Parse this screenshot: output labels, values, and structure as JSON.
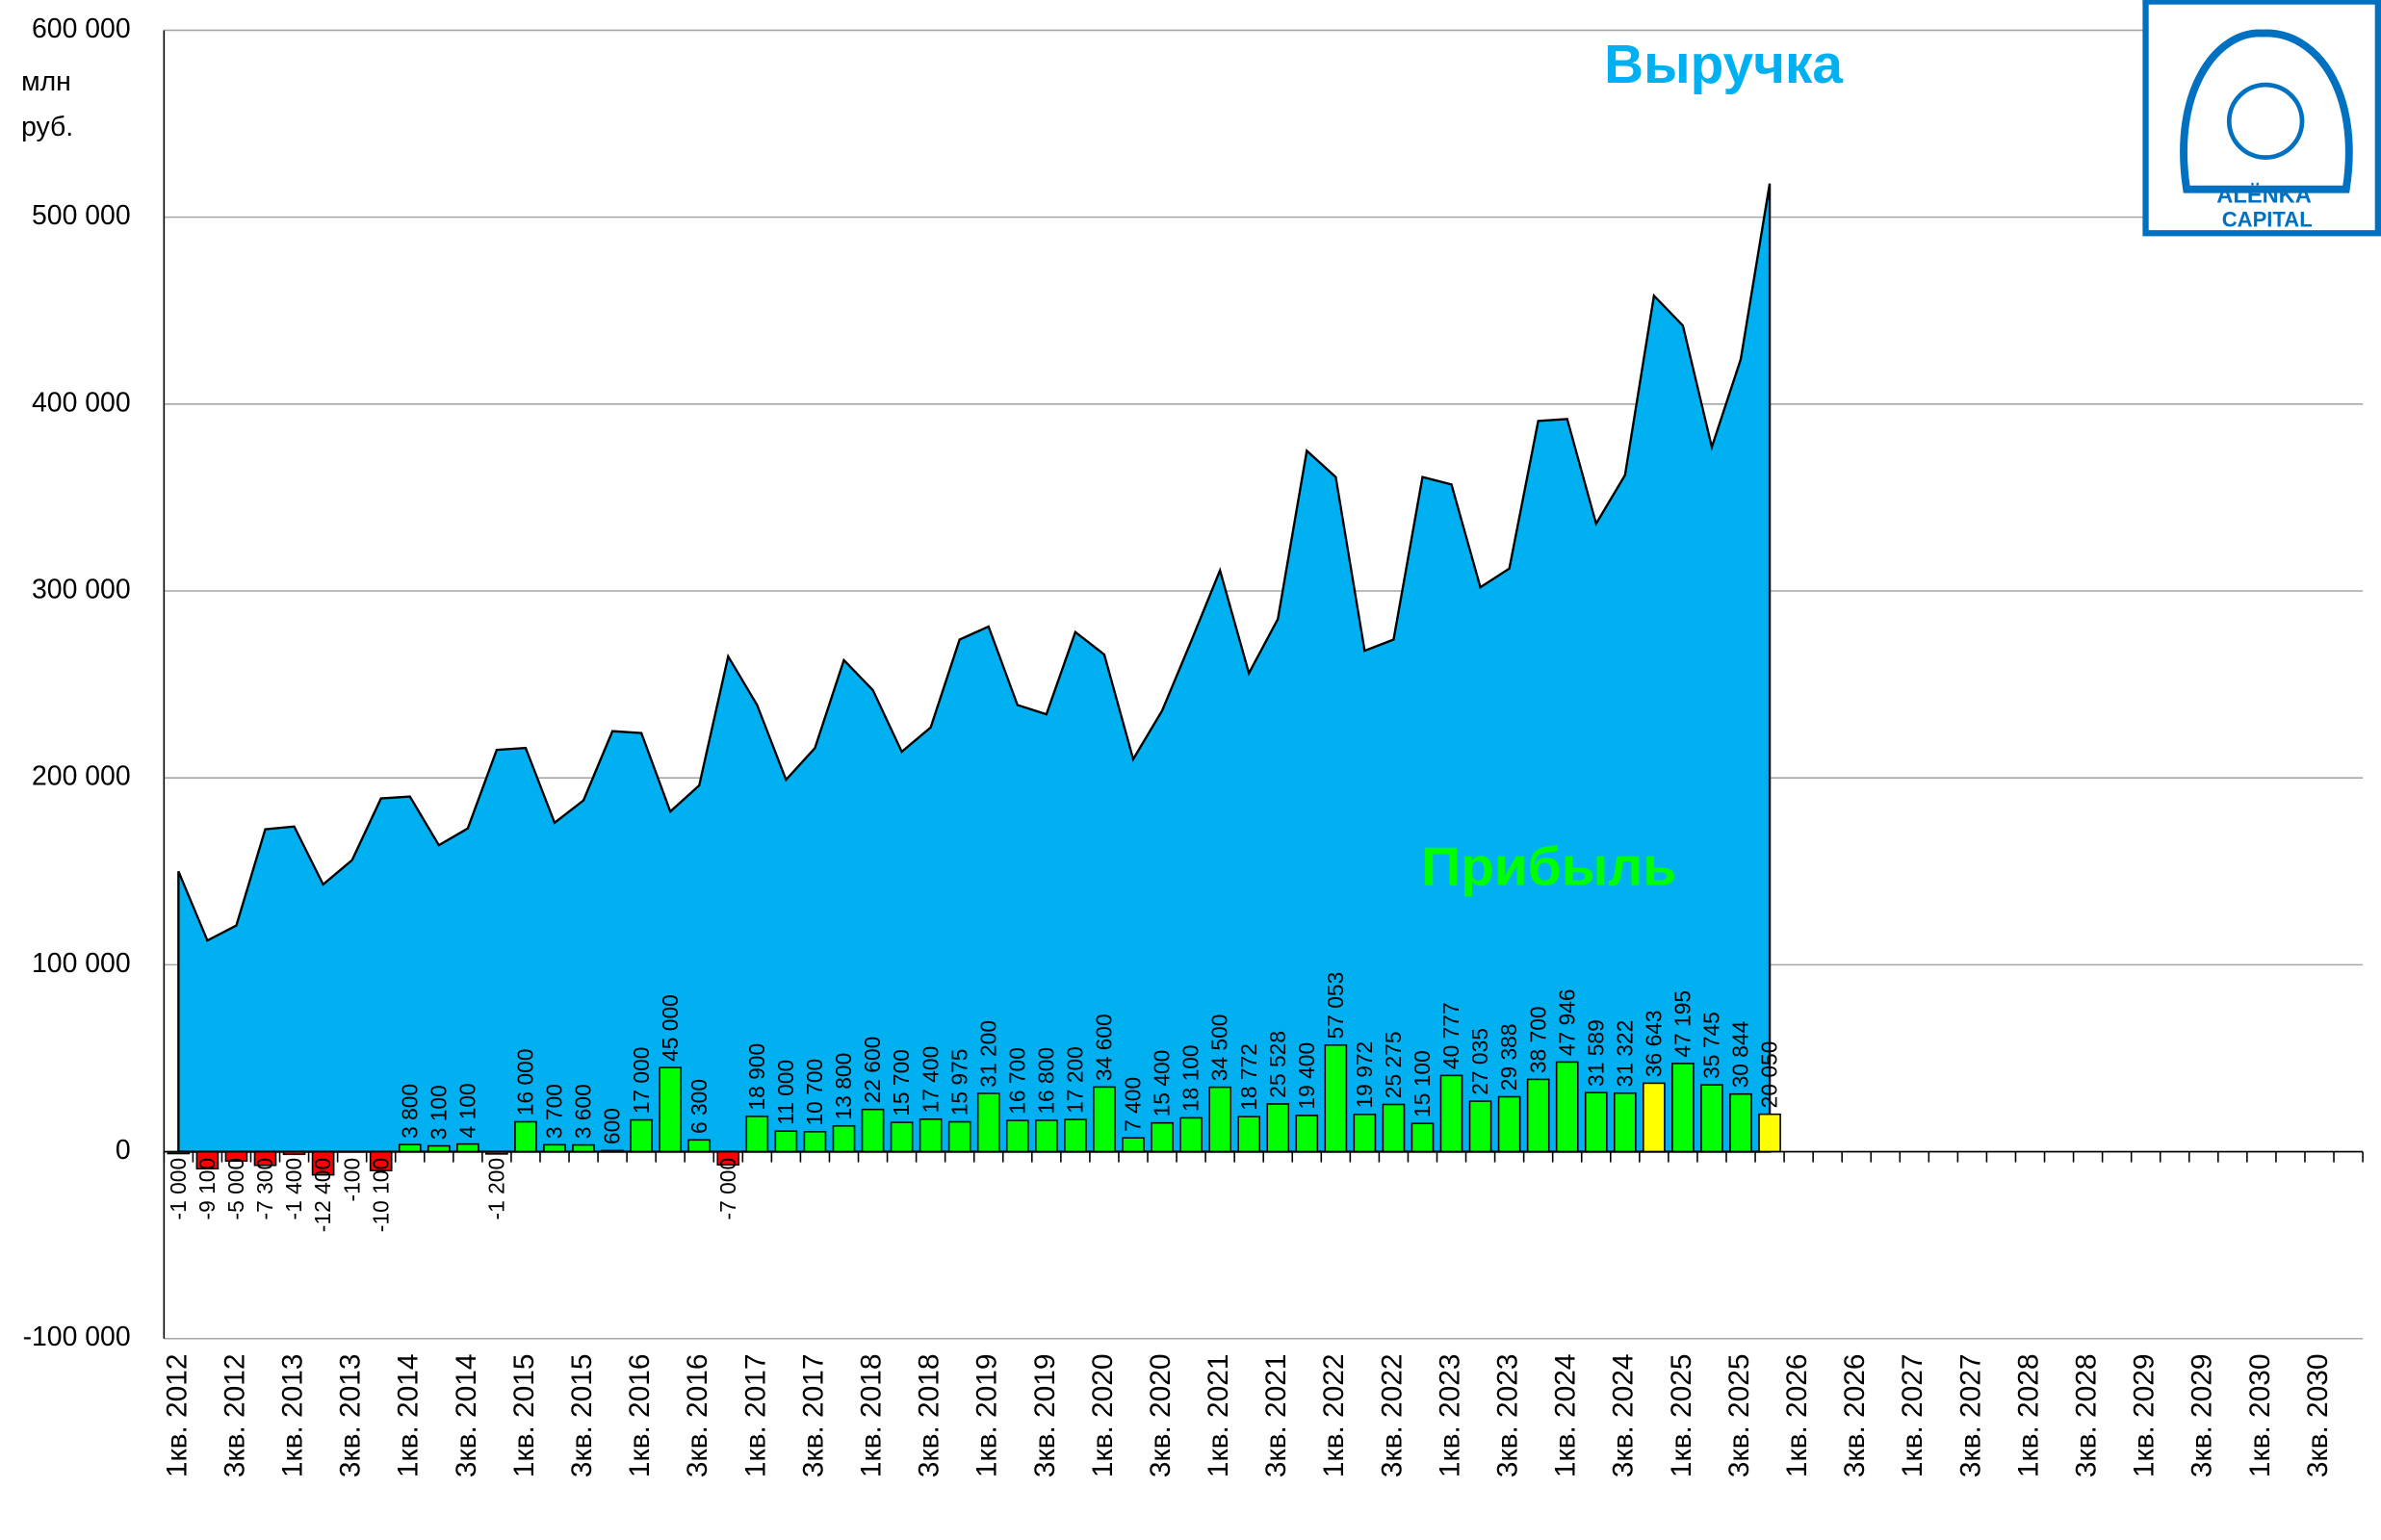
{
  "chart_data": {
    "type": "combo",
    "unit": [
      "млн",
      "руб."
    ],
    "logo": [
      "ALËNKA",
      "CAPITAL"
    ],
    "categories": [
      "1кв. 2012",
      null,
      "3кв. 2012",
      null,
      "1кв. 2013",
      null,
      "3кв. 2013",
      null,
      "1кв. 2014",
      null,
      "3кв. 2014",
      null,
      "1кв. 2015",
      null,
      "3кв. 2015",
      null,
      "1кв. 2016",
      null,
      "3кв. 2016",
      null,
      "1кв. 2017",
      null,
      "3кв. 2017",
      null,
      "1кв. 2018",
      null,
      "3кв. 2018",
      null,
      "1кв. 2019",
      null,
      "3кв. 2019",
      null,
      "1кв. 2020",
      null,
      "3кв. 2020",
      null,
      "1кв. 2021",
      null,
      "3кв. 2021",
      null,
      "1кв. 2022",
      null,
      "3кв. 2022",
      null,
      "1кв. 2023",
      null,
      "3кв. 2023",
      null,
      "1кв. 2024",
      null,
      "3кв. 2024",
      null,
      "1кв. 2025",
      null,
      "3кв. 2025",
      null,
      "1кв. 2026",
      null,
      "3кв. 2026",
      null,
      "1кв. 2027",
      null,
      "3кв. 2027",
      null,
      "1кв. 2028",
      null,
      "3кв. 2028",
      null,
      "1кв. 2029",
      null,
      "3кв. 2029",
      null,
      "1кв. 2030",
      null,
      "3кв. 2030",
      null
    ],
    "series": [
      {
        "name": "Выручка",
        "type": "area",
        "color": "#00b0f0",
        "values": [
          150000,
          113000,
          121000,
          172500,
          174000,
          143000,
          156000,
          189000,
          190000,
          164000,
          173000,
          215000,
          216000,
          176000,
          188000,
          225000,
          224000,
          182000,
          196000,
          265000,
          239000,
          199000,
          216000,
          263000,
          247000,
          214000,
          227000,
          274000,
          281000,
          239000,
          234000,
          278000,
          266000,
          210000,
          236000,
          273000,
          311000,
          256000,
          285000,
          375000,
          361000,
          268000,
          274000,
          361000,
          357000,
          302000,
          312000,
          391000,
          392000,
          336000,
          362000,
          458000,
          442000,
          377000,
          424000,
          518000,
          null,
          null,
          null,
          null,
          null,
          null,
          null,
          null,
          null,
          null,
          null,
          null,
          null,
          null,
          null,
          null,
          null,
          null,
          null,
          null
        ]
      },
      {
        "name": "Прибыль",
        "type": "bar",
        "color": "#00ff00",
        "values": [
          -1000,
          -9100,
          -5000,
          -7300,
          -1400,
          -12400,
          -100,
          -10100,
          3800,
          3100,
          4100,
          -1200,
          16000,
          3700,
          3600,
          600,
          17000,
          45000,
          6300,
          -7000,
          18900,
          11000,
          10700,
          13800,
          22600,
          15700,
          17400,
          15975,
          31200,
          16700,
          16800,
          17200,
          34600,
          7400,
          15400,
          18100,
          34500,
          18772,
          25528,
          19400,
          57053,
          19972,
          25275,
          15100,
          40777,
          27035,
          29388,
          38700,
          47946,
          31589,
          31322,
          36643,
          47195,
          35745,
          30844,
          20050,
          null,
          null,
          null,
          null,
          null,
          null,
          null,
          null,
          null,
          null,
          null,
          null,
          null,
          null,
          null,
          null,
          null,
          null,
          null,
          null
        ],
        "value_labels": [
          "-1 000",
          "-9 100",
          "-5 000",
          "-7 300",
          "-1 400",
          "-12 400",
          "-100",
          "-10 100",
          "3 800",
          "3 100",
          "4 100",
          "-1 200",
          "16 000",
          "3 700",
          "3 600",
          "600",
          "17 000",
          "45 000",
          "6 300",
          "-7 000",
          "18 900",
          "11 000",
          "10 700",
          "13 800",
          "22 600",
          "15 700",
          "17 400",
          "15 975",
          "31 200",
          "16 700",
          "16 800",
          "17 200",
          "34 600",
          "7 400",
          "15 400",
          "18 100",
          "34 500",
          "18 772",
          "25 528",
          "19 400",
          "57 053",
          "19 972",
          "25 275",
          "15 100",
          "40 777",
          "27 035",
          "29 388",
          "38 700",
          "47 946",
          "31 589",
          "31 322",
          "36 643",
          "47 195",
          "35 745",
          "30 844",
          "20 050",
          null,
          null,
          null,
          null,
          null,
          null,
          null,
          null,
          null,
          null,
          null,
          null,
          null,
          null,
          null,
          null,
          null,
          null,
          null,
          null
        ],
        "colors": [
          "#ff0000",
          "#ff0000",
          "#ff0000",
          "#ff0000",
          "#ff0000",
          "#ff0000",
          "#ff0000",
          "#ff0000",
          "#00ff00",
          "#00ff00",
          "#00ff00",
          "#ff0000",
          "#00ff00",
          "#00ff00",
          "#00ff00",
          "#00ff00",
          "#00ff00",
          "#00ff00",
          "#00ff00",
          "#ff0000",
          "#00ff00",
          "#00ff00",
          "#00ff00",
          "#00ff00",
          "#00ff00",
          "#00ff00",
          "#00ff00",
          "#00ff00",
          "#00ff00",
          "#00ff00",
          "#00ff00",
          "#00ff00",
          "#00ff00",
          "#00ff00",
          "#00ff00",
          "#00ff00",
          "#00ff00",
          "#00ff00",
          "#00ff00",
          "#00ff00",
          "#00ff00",
          "#00ff00",
          "#00ff00",
          "#00ff00",
          "#00ff00",
          "#00ff00",
          "#00ff00",
          "#00ff00",
          "#00ff00",
          "#00ff00",
          "#00ff00",
          "#ffff00",
          "#00ff00",
          "#00ff00",
          "#00ff00",
          "#ffff00",
          null,
          null,
          null,
          null,
          null,
          null,
          null,
          null,
          null,
          null,
          null,
          null,
          null,
          null,
          null,
          null,
          null,
          null,
          null,
          null
        ]
      }
    ],
    "ylim": [
      -100000,
      600000
    ],
    "yticks": [
      {
        "value": -100000,
        "label": "-100 000"
      },
      0,
      {
        "value": 100000,
        "label": "100 000"
      },
      {
        "value": 200000,
        "label": "200 000"
      },
      {
        "value": 300000,
        "label": "300 000"
      },
      {
        "value": 400000,
        "label": "400 000"
      },
      {
        "value": 500000,
        "label": "500 000"
      },
      {
        "value": 600000,
        "label": "600 000"
      }
    ],
    "grid": true
  }
}
